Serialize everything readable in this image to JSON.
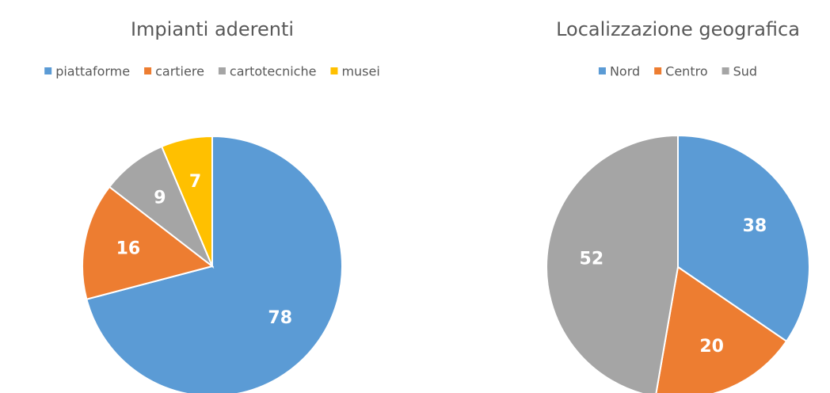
{
  "chart_data": [
    {
      "type": "pie",
      "title": "Impianti aderenti",
      "categories": [
        "piattaforme",
        "cartiere",
        "cartotecniche",
        "musei"
      ],
      "values": [
        78,
        16,
        9,
        7
      ],
      "colors": [
        "#5b9bd5",
        "#ed7d31",
        "#a5a5a5",
        "#ffc000"
      ],
      "legend": "top"
    },
    {
      "type": "pie",
      "title": "Localizzazione geografica",
      "categories": [
        "Nord",
        "Centro",
        "Sud"
      ],
      "values": [
        38,
        20,
        52
      ],
      "colors": [
        "#5b9bd5",
        "#ed7d31",
        "#a5a5a5"
      ],
      "legend": "top"
    }
  ]
}
